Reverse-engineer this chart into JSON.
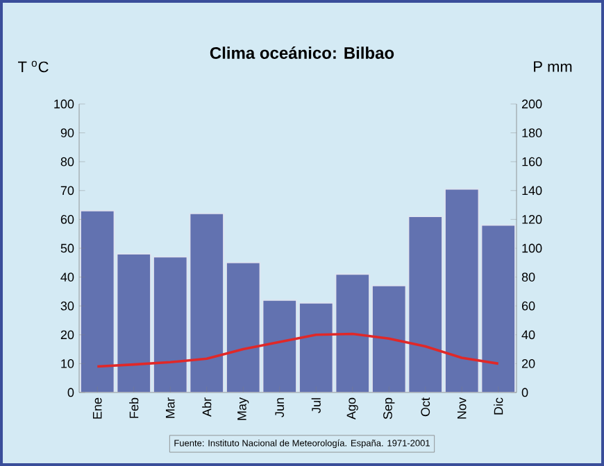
{
  "chart_data": {
    "type": "bar",
    "title": "Clima oceánico: Bilbao",
    "ylabel": "T $^{o}$C",
    "y2label": "P mm",
    "categories": [
      "Ene",
      "Feb",
      "Mar",
      "Abr",
      "May",
      "Jun",
      "Jul",
      "Ago",
      "Sep",
      "Oct",
      "Nov",
      "Dic"
    ],
    "series": [
      {
        "axis": "y2",
        "color": "#6272b0",
        "values": [
          126,
          96,
          94,
          124,
          90,
          64,
          62,
          82,
          74,
          122,
          141,
          116
        ]
      },
      {
        "type": "line",
        "axis": "y",
        "color": "#e02828",
        "values": [
          9,
          9.7,
          10.5,
          11.7,
          15,
          17.5,
          20,
          20.3,
          18.7,
          16,
          12,
          10
        ]
      }
    ],
    "ylim": [
      0,
      100
    ],
    "yticks": [
      0,
      10,
      20,
      30,
      40,
      50,
      60,
      70,
      80,
      90,
      100
    ],
    "y2lim": [
      0,
      200
    ],
    "y2ticks": [
      0,
      20,
      40,
      60,
      80,
      100,
      120,
      140,
      160,
      180,
      200
    ],
    "annotations": [
      "Fuente: Instituto Nacional de Meteorología. España. 1971-2001"
    ]
  }
}
